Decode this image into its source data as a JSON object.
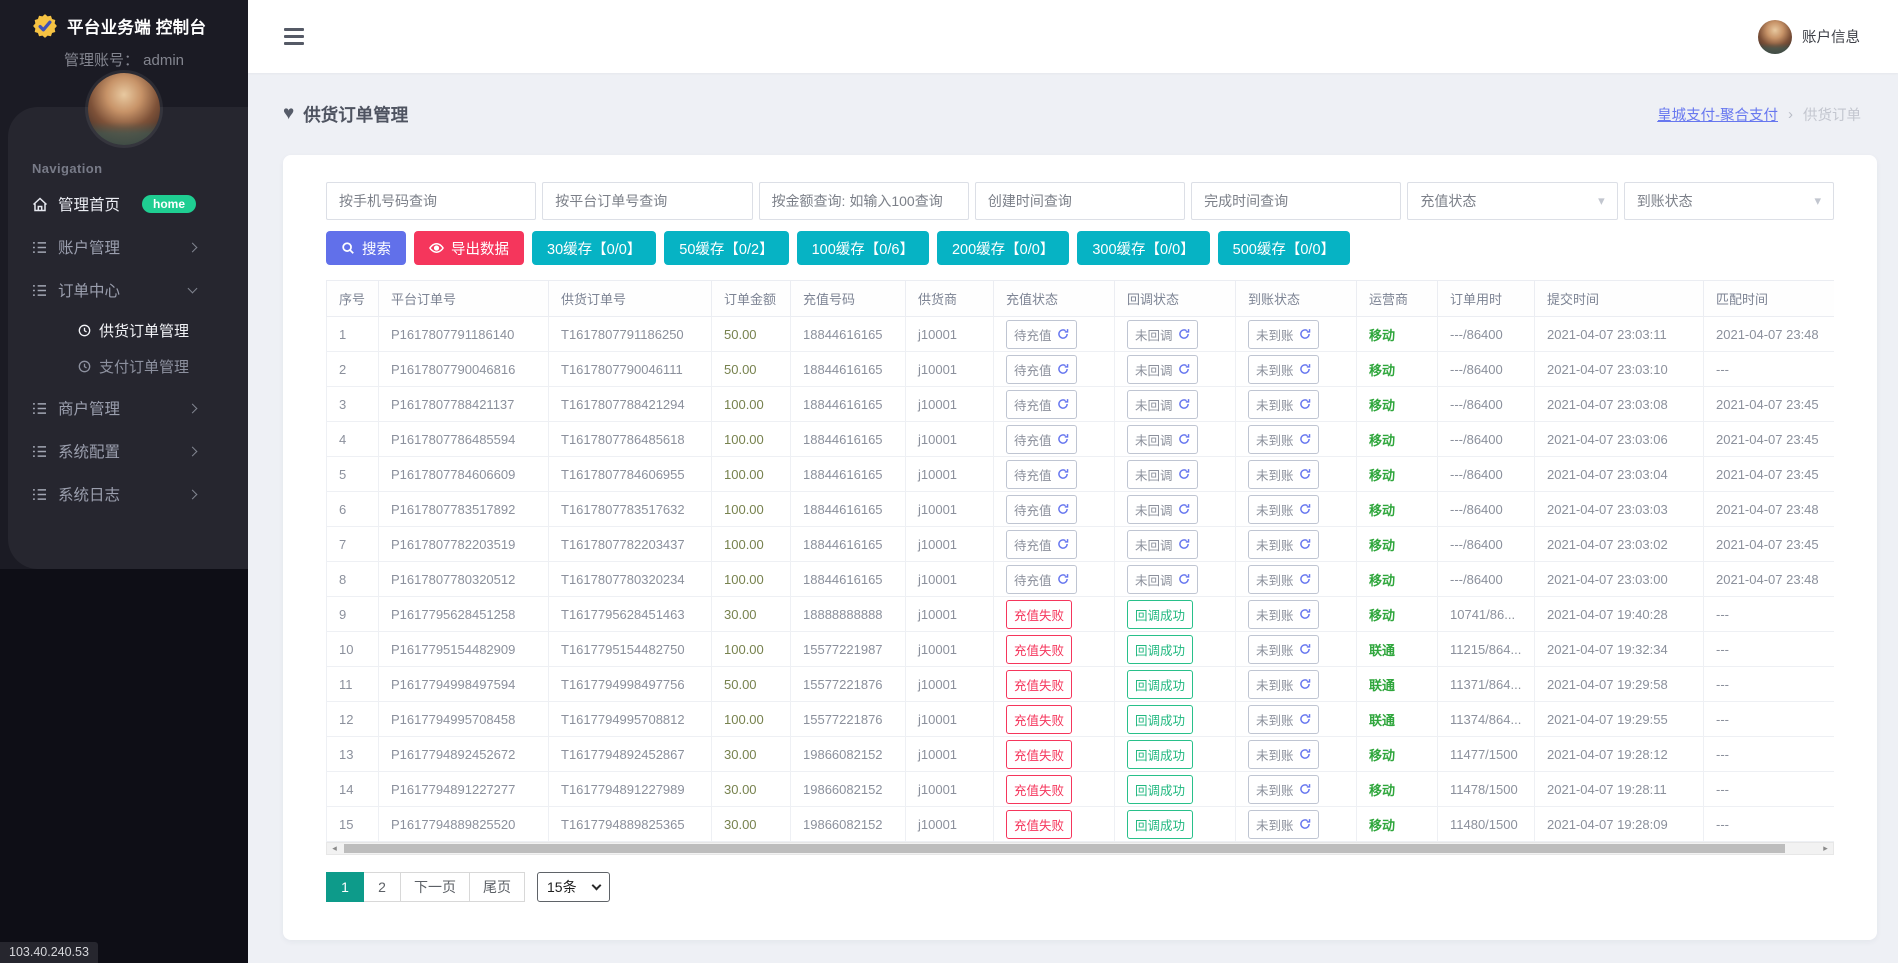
{
  "app": {
    "logo_title": "平台业务端 控制台",
    "admin_line": "管理账号： admin",
    "account_label": "账户信息",
    "footer_ip": "103.40.240.53"
  },
  "icons": {
    "heart": "♥",
    "caret_down": "▾",
    "breadcrumb_separator": "›",
    "scroll_left": "◂",
    "scroll_right": "▸"
  },
  "colors": {
    "accent_blue": "#6777ef",
    "export_pink": "#f5365c",
    "cache_cyan": "#06b3c4",
    "pagination_active_teal": "#0d9b8a",
    "status_success_green": "#28c08a",
    "operator_green": "#2fa63c",
    "home_badge_green": "#1fce92"
  },
  "sidebar": {
    "nav_label": "Navigation",
    "items": [
      {
        "label": "管理首页",
        "badge": "home"
      },
      {
        "label": "账户管理"
      },
      {
        "label": "订单中心",
        "expanded": true,
        "children": [
          {
            "label": "供货订单管理",
            "active": true
          },
          {
            "label": "支付订单管理"
          }
        ]
      },
      {
        "label": "商户管理"
      },
      {
        "label": "系统配置"
      },
      {
        "label": "系统日志"
      }
    ]
  },
  "page": {
    "title": "供货订单管理"
  },
  "breadcrumb": {
    "parent": "皇城支付-聚合支付",
    "separator": "›",
    "current": "供货订单"
  },
  "filters": [
    {
      "type": "input",
      "placeholder": "按手机号码查询"
    },
    {
      "type": "input",
      "placeholder": "按平台订单号查询"
    },
    {
      "type": "input",
      "placeholder": "按金额查询: 如输入100查询"
    },
    {
      "type": "input",
      "placeholder": "创建时间查询"
    },
    {
      "type": "input",
      "placeholder": "完成时间查询"
    },
    {
      "type": "select",
      "label": "充值状态"
    },
    {
      "type": "select",
      "label": "到账状态"
    }
  ],
  "actions": {
    "search": "搜索",
    "export": "导出数据",
    "cache_buttons": [
      "30缓存【0/0】",
      "50缓存【0/2】",
      "100缓存【0/6】",
      "200缓存【0/0】",
      "300缓存【0/0】",
      "500缓存【0/0】"
    ]
  },
  "table": {
    "columns": [
      "序号",
      "平台订单号",
      "供货订单号",
      "订单金额",
      "充值号码",
      "供货商",
      "充值状态",
      "回调状态",
      "到账状态",
      "运营商",
      "订单用时",
      "提交时间",
      "匹配时间"
    ],
    "rows": [
      {
        "index": "1",
        "platform_no": "P1617807791186140",
        "supply_no": "T1617807791186250",
        "amount": "50.00",
        "phone": "18844616165",
        "supplier": "j10001",
        "recharge_status": "待充值",
        "callback_status": "未回调",
        "arrival_status": "未到账",
        "operator": "移动",
        "duration": "---/86400",
        "submit_time": "2021-04-07 23:03:11",
        "match_time": "2021-04-07 23:48"
      },
      {
        "index": "2",
        "platform_no": "P1617807790046816",
        "supply_no": "T1617807790046111",
        "amount": "50.00",
        "phone": "18844616165",
        "supplier": "j10001",
        "recharge_status": "待充值",
        "callback_status": "未回调",
        "arrival_status": "未到账",
        "operator": "移动",
        "duration": "---/86400",
        "submit_time": "2021-04-07 23:03:10",
        "match_time": "---"
      },
      {
        "index": "3",
        "platform_no": "P1617807788421137",
        "supply_no": "T1617807788421294",
        "amount": "100.00",
        "phone": "18844616165",
        "supplier": "j10001",
        "recharge_status": "待充值",
        "callback_status": "未回调",
        "arrival_status": "未到账",
        "operator": "移动",
        "duration": "---/86400",
        "submit_time": "2021-04-07 23:03:08",
        "match_time": "2021-04-07 23:45"
      },
      {
        "index": "4",
        "platform_no": "P1617807786485594",
        "supply_no": "T1617807786485618",
        "amount": "100.00",
        "phone": "18844616165",
        "supplier": "j10001",
        "recharge_status": "待充值",
        "callback_status": "未回调",
        "arrival_status": "未到账",
        "operator": "移动",
        "duration": "---/86400",
        "submit_time": "2021-04-07 23:03:06",
        "match_time": "2021-04-07 23:45"
      },
      {
        "index": "5",
        "platform_no": "P1617807784606609",
        "supply_no": "T1617807784606955",
        "amount": "100.00",
        "phone": "18844616165",
        "supplier": "j10001",
        "recharge_status": "待充值",
        "callback_status": "未回调",
        "arrival_status": "未到账",
        "operator": "移动",
        "duration": "---/86400",
        "submit_time": "2021-04-07 23:03:04",
        "match_time": "2021-04-07 23:45"
      },
      {
        "index": "6",
        "platform_no": "P1617807783517892",
        "supply_no": "T1617807783517632",
        "amount": "100.00",
        "phone": "18844616165",
        "supplier": "j10001",
        "recharge_status": "待充值",
        "callback_status": "未回调",
        "arrival_status": "未到账",
        "operator": "移动",
        "duration": "---/86400",
        "submit_time": "2021-04-07 23:03:03",
        "match_time": "2021-04-07 23:48"
      },
      {
        "index": "7",
        "platform_no": "P1617807782203519",
        "supply_no": "T1617807782203437",
        "amount": "100.00",
        "phone": "18844616165",
        "supplier": "j10001",
        "recharge_status": "待充值",
        "callback_status": "未回调",
        "arrival_status": "未到账",
        "operator": "移动",
        "duration": "---/86400",
        "submit_time": "2021-04-07 23:03:02",
        "match_time": "2021-04-07 23:45"
      },
      {
        "index": "8",
        "platform_no": "P1617807780320512",
        "supply_no": "T1617807780320234",
        "amount": "100.00",
        "phone": "18844616165",
        "supplier": "j10001",
        "recharge_status": "待充值",
        "callback_status": "未回调",
        "arrival_status": "未到账",
        "operator": "移动",
        "duration": "---/86400",
        "submit_time": "2021-04-07 23:03:00",
        "match_time": "2021-04-07 23:48"
      },
      {
        "index": "9",
        "platform_no": "P1617795628451258",
        "supply_no": "T1617795628451463",
        "amount": "30.00",
        "phone": "18888888888",
        "supplier": "j10001",
        "recharge_status": "充值失败",
        "callback_status": "回调成功",
        "arrival_status": "未到账",
        "operator": "移动",
        "duration": "10741/86...",
        "submit_time": "2021-04-07 19:40:28",
        "match_time": "---"
      },
      {
        "index": "10",
        "platform_no": "P1617795154482909",
        "supply_no": "T1617795154482750",
        "amount": "100.00",
        "phone": "15577221987",
        "supplier": "j10001",
        "recharge_status": "充值失败",
        "callback_status": "回调成功",
        "arrival_status": "未到账",
        "operator": "联通",
        "duration": "11215/864...",
        "submit_time": "2021-04-07 19:32:34",
        "match_time": "---"
      },
      {
        "index": "11",
        "platform_no": "P1617794998497594",
        "supply_no": "T1617794998497756",
        "amount": "50.00",
        "phone": "15577221876",
        "supplier": "j10001",
        "recharge_status": "充值失败",
        "callback_status": "回调成功",
        "arrival_status": "未到账",
        "operator": "联通",
        "duration": "11371/864...",
        "submit_time": "2021-04-07 19:29:58",
        "match_time": "---"
      },
      {
        "index": "12",
        "platform_no": "P1617794995708458",
        "supply_no": "T1617794995708812",
        "amount": "100.00",
        "phone": "15577221876",
        "supplier": "j10001",
        "recharge_status": "充值失败",
        "callback_status": "回调成功",
        "arrival_status": "未到账",
        "operator": "联通",
        "duration": "11374/864...",
        "submit_time": "2021-04-07 19:29:55",
        "match_time": "---"
      },
      {
        "index": "13",
        "platform_no": "P1617794892452672",
        "supply_no": "T1617794892452867",
        "amount": "30.00",
        "phone": "19866082152",
        "supplier": "j10001",
        "recharge_status": "充值失败",
        "callback_status": "回调成功",
        "arrival_status": "未到账",
        "operator": "移动",
        "duration": "11477/1500",
        "submit_time": "2021-04-07 19:28:12",
        "match_time": "---"
      },
      {
        "index": "14",
        "platform_no": "P1617794891227277",
        "supply_no": "T1617794891227989",
        "amount": "30.00",
        "phone": "19866082152",
        "supplier": "j10001",
        "recharge_status": "充值失败",
        "callback_status": "回调成功",
        "arrival_status": "未到账",
        "operator": "移动",
        "duration": "11478/1500",
        "submit_time": "2021-04-07 19:28:11",
        "match_time": "---"
      },
      {
        "index": "15",
        "platform_no": "P1617794889825520",
        "supply_no": "T1617794889825365",
        "amount": "30.00",
        "phone": "19866082152",
        "supplier": "j10001",
        "recharge_status": "充值失败",
        "callback_status": "回调成功",
        "arrival_status": "未到账",
        "operator": "移动",
        "duration": "11480/1500",
        "submit_time": "2021-04-07 19:28:09",
        "match_time": "---"
      }
    ]
  },
  "pagination": {
    "pages": [
      "1",
      "2"
    ],
    "active_page": "1",
    "next_label": "下一页",
    "last_label": "尾页",
    "page_size": "15条"
  }
}
